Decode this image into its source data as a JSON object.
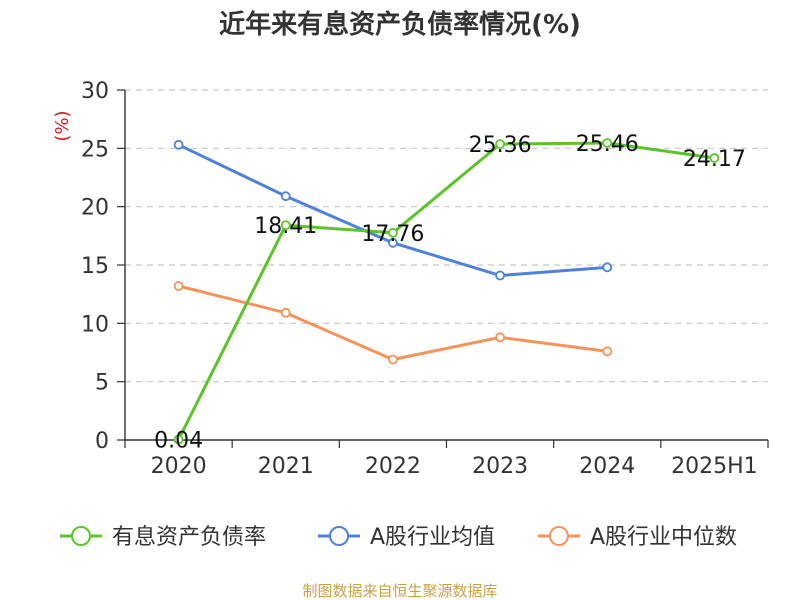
{
  "chart_data": {
    "type": "line",
    "title": "近年来有息资产负债率情况(%)",
    "ylabel": "(%)",
    "xlabel": "",
    "categories": [
      "2020",
      "2021",
      "2022",
      "2023",
      "2024",
      "2025H1"
    ],
    "ylim": [
      0,
      30
    ],
    "yticks": [
      0,
      5,
      10,
      15,
      20,
      25,
      30
    ],
    "grid": true,
    "legend_position": "bottom",
    "series": [
      {
        "name": "有息资产负债率",
        "color": "#5bc42a",
        "values": [
          0.04,
          18.41,
          17.76,
          25.36,
          25.46,
          24.17
        ],
        "data_labels": [
          "0.04",
          "18.41",
          "17.76",
          "25.36",
          "25.46",
          "24.17"
        ]
      },
      {
        "name": "A股行业均值",
        "color": "#4f81db",
        "values": [
          25.3,
          20.9,
          16.9,
          14.1,
          14.8,
          null
        ]
      },
      {
        "name": "A股行业中位数",
        "color": "#f5935a",
        "values": [
          13.2,
          10.9,
          6.9,
          8.8,
          7.6,
          null
        ]
      }
    ]
  },
  "source": {
    "text": "制图数据来自恒生聚源数据库",
    "color": "#c8a14a"
  },
  "ylabel_color": "#cc2222"
}
